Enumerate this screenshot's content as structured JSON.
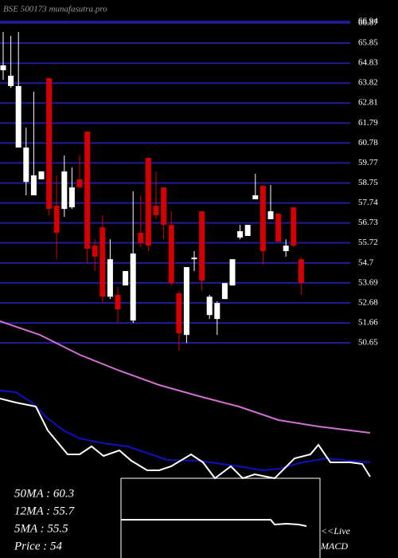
{
  "chart_data": [
    {
      "type": "candlestick",
      "title": "BSE 500173 munafasutra.pro",
      "open": [
        64.47,
        63.67,
        60.55,
        58.81,
        58.13,
        58.94,
        64.07,
        57.6,
        57.44,
        57.52,
        58.94,
        61.36,
        55.58,
        56.51,
        52.99,
        53.08,
        53.56,
        51.78,
        56.23,
        60.03,
        57.6,
        58.53,
        56.63,
        53.16,
        51.05,
        54.89,
        57.32,
        52.06,
        51.86,
        52.87,
        53.56,
        55.99,
        56.07,
        57.93,
        58.61,
        56.92,
        57.2,
        55.3,
        57.52,
        54.89
      ],
      "high": [
        66.41,
        66.21,
        66.41,
        61.56,
        63.38,
        59.34,
        64.07,
        59.14,
        60.15,
        59.54,
        60.15,
        61.36,
        55.9,
        57.12,
        55.9,
        53.48,
        54.29,
        58.33,
        58.13,
        60.03,
        59.34,
        58.53,
        57.32,
        53.28,
        54.49,
        55.3,
        57.32,
        53.08,
        52.75,
        53.68,
        54.89,
        56.63,
        56.63,
        59.22,
        58.65,
        58.65,
        57.2,
        55.9,
        57.52,
        54.97
      ],
      "low": [
        63.99,
        63.58,
        60.55,
        58.13,
        58.13,
        58.94,
        57.12,
        54.89,
        57.04,
        57.44,
        58.53,
        54.69,
        54.29,
        52.67,
        52.87,
        51.66,
        53.56,
        51.66,
        55.5,
        55.3,
        56.92,
        55.9,
        53.56,
        50.25,
        50.65,
        54.29,
        53.28,
        51.86,
        51.05,
        52.87,
        53.56,
        55.9,
        56.07,
        57.93,
        54.61,
        56.92,
        55.78,
        55.02,
        55.5,
        53.08
      ],
      "close": [
        64.72,
        64.19,
        63.67,
        60.55,
        59.14,
        59.34,
        57.44,
        56.23,
        59.34,
        58.53,
        58.53,
        55.42,
        55.02,
        52.99,
        54.89,
        52.35,
        54.29,
        55.18,
        55.7,
        55.58,
        57.12,
        56.63,
        53.68,
        51.14,
        54.49,
        54.97,
        53.8,
        52.99,
        52.67,
        53.68,
        54.89,
        56.31,
        56.63,
        58.13,
        55.3,
        57.32,
        55.78,
        55.58,
        55.58,
        53.68
      ],
      "up_color": "#ffffff",
      "down_color": "#d40000",
      "ylim": [
        50.25,
        66.94
      ],
      "yticks": [
        66.94,
        66.87,
        65.85,
        64.83,
        63.82,
        62.81,
        61.79,
        60.78,
        59.77,
        58.75,
        57.74,
        56.73,
        55.72,
        54.7,
        53.69,
        52.68,
        51.66,
        50.65
      ],
      "grid": true,
      "grid_color": "#1e1e96"
    },
    {
      "type": "line",
      "xlim": [
        0,
        500
      ],
      "ylim": [
        0,
        210
      ],
      "stats": [
        "50MA : 60.3",
        "12MA : 55.7",
        "5MA : 55.5",
        "Price   : 54"
      ],
      "series": [
        {
          "color": "#d070d0",
          "x": [
            0,
            50,
            100,
            150,
            200,
            250,
            300,
            350,
            400,
            465
          ],
          "values": [
            197,
            180,
            155,
            135,
            117,
            103,
            90,
            73,
            65,
            57
          ]
        },
        {
          "color": "#1010c0",
          "x": [
            0,
            20,
            40,
            60,
            80,
            100,
            130,
            160,
            190,
            210,
            250,
            300,
            330,
            350,
            380,
            410,
            440,
            465
          ],
          "values": [
            110,
            108,
            95,
            75,
            60,
            50,
            44,
            40,
            30,
            23,
            22,
            15,
            10,
            12,
            20,
            25,
            22,
            20
          ]
        },
        {
          "color": "#ffffff",
          "x": [
            0,
            20,
            45,
            60,
            85,
            100,
            115,
            130,
            150,
            165,
            185,
            200,
            215,
            240,
            255,
            270,
            290,
            305,
            320,
            345,
            370,
            390,
            400,
            415,
            440,
            455,
            465
          ],
          "values": [
            100,
            95,
            90,
            60,
            30,
            30,
            40,
            28,
            35,
            22,
            10,
            10,
            15,
            30,
            20,
            0,
            15,
            0,
            5,
            0,
            25,
            30,
            42,
            20,
            20,
            18,
            2
          ]
        }
      ]
    },
    {
      "type": "line",
      "xlim": [
        152,
        402
      ],
      "ylim": [
        0,
        100
      ],
      "label": [
        "<<Live",
        "MACD"
      ],
      "series": [
        {
          "color": "#ffffff",
          "x": [
            152,
            200,
            250,
            300,
            340,
            345,
            360,
            375,
            385
          ],
          "values": [
            48,
            48,
            48,
            48,
            48,
            42,
            43,
            42,
            40
          ]
        }
      ]
    }
  ]
}
